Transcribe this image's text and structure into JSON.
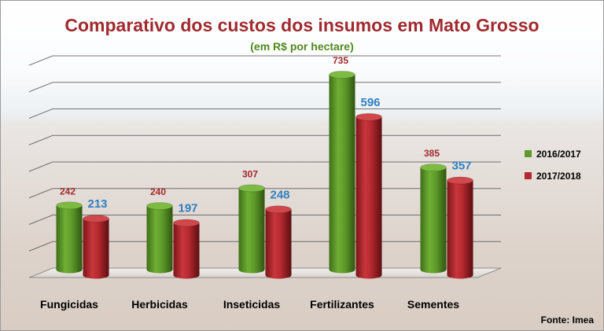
{
  "header": {
    "title": "Comparativo dos custos dos insumos em Mato Grosso",
    "subtitle": "(em R$ por hectare)"
  },
  "source": "Fonte: Imea",
  "chart_data": {
    "type": "bar",
    "title": "Comparativo dos custos dos insumos em Mato Grosso",
    "subtitle": "(em R$ por hectare)",
    "categories": [
      "Fungicidas",
      "Herbicidas",
      "Inseticidas",
      "Fertilizantes",
      "Sementes"
    ],
    "series": [
      {
        "name": "2016/2017",
        "values": [
          242,
          240,
          307,
          735,
          385
        ],
        "color": "#5e9a2a",
        "label_color": "#a12a2f"
      },
      {
        "name": "2017/2018",
        "values": [
          213,
          197,
          248,
          596,
          357
        ],
        "color": "#b3292f",
        "label_color": "#2f7fc1"
      }
    ],
    "ylim": [
      0,
      800
    ],
    "grid": true,
    "legend_position": "right"
  }
}
